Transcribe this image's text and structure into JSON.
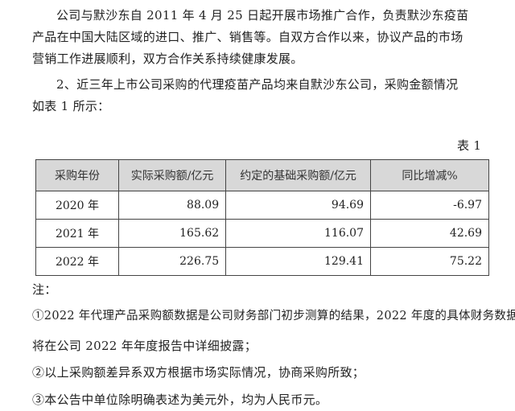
{
  "paragraphs": [
    "公司与默沙东自 2011 年 4 月 25 日起开展市场推广合作，负责默沙东疫苗",
    "产品在中国大陆区域的进口、推广、销售等。自双方合作以来，协议产品的市场",
    "营销工作进展顺利，双方合作关系持续健康发展。",
    "2、近三年上市公司采购的代理疫苗产品均来自默沙东公司，采购金额情况",
    "如表 1 所示："
  ],
  "table_caption": "表 1",
  "table": {
    "headers": [
      "采购年份",
      "实际采购额/亿元",
      "约定的基础采购额/亿元",
      "同比增减%"
    ],
    "rows": [
      [
        "2020 年",
        "88.09",
        "94.69",
        "-6.97"
      ],
      [
        "2021 年",
        "165.62",
        "116.07",
        "42.69"
      ],
      [
        "2022 年",
        "226.75",
        "129.41",
        "75.22"
      ]
    ]
  },
  "notes": [
    "注：",
    "①2022 年代理产品采购额数据是公司财务部门初步测算的结果，2022 年度的具体财务数据",
    "将在公司 2022 年年度报告中详细披露；",
    "②以上采购额差异系双方根据市场实际情况，协商采购所致；",
    "③本公告中单位除明确表述为美元外，均为人民币元。"
  ]
}
